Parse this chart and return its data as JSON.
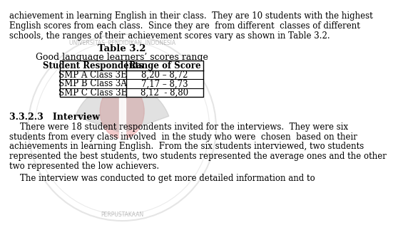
{
  "bg_color": "#ffffff",
  "text_color": "#000000",
  "watermark_color_outer_ring": "#c8c8c8",
  "watermark_color_red": "#e8a0a0",
  "watermark_color_yellow": "#f0e870",
  "watermark_color_gray": "#b8b8b8",
  "title_line1": "Table 3.2",
  "title_line2": "Good language learners’ scores range",
  "col_headers": [
    "Student Respondents",
    "Range of Score"
  ],
  "rows": [
    [
      "SMP A Class 3E",
      "8,20 – 8,72"
    ],
    [
      "SMP B Class 3A",
      "7,17 – 8,73"
    ],
    [
      "SMP C Class 3E",
      "8,12  - 8,80"
    ]
  ],
  "text_above_line1": "English scores from each class.  Since they are  from different  classes of different",
  "text_above_line2": "schools, the ranges of their achievement scores vary as shown in Table 3.2.",
  "section_header": "3.3.2.3   Interview",
  "para1_line1": "    There were 18 student respondents invited for the interviews.  They were six",
  "para1_line2": "students from every class involved  in the study who were  chosen  based on their",
  "para1_line3": "achievements in learning English.  From the six students interviewed, two students",
  "para1_line4": "represented the best students, two students represented the average ones and the other",
  "para1_line5": "two represented the low achievers.",
  "para2_line1": "    The interview was conducted to get more detailed information and to",
  "border_color": "#000000",
  "table_font_size": 8.5,
  "title_font_size": 9.5,
  "body_font_size": 8.5,
  "section_font_size": 9.0
}
